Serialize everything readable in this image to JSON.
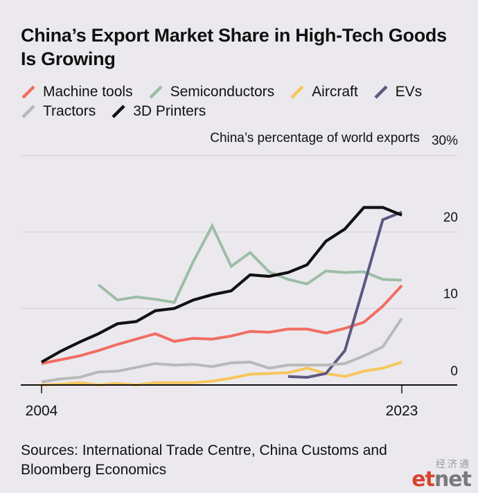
{
  "title": "China’s Export Market Share in High-Tech Goods Is Growing",
  "unit_label": "China’s percentage of world exports",
  "source": "Sources: International Trade Centre, China Customs and Bloomberg Economics",
  "logo": {
    "cn": "经济通",
    "e": "et",
    "t": "net"
  },
  "chart_data": {
    "type": "line",
    "title": "China’s Export Market Share in High-Tech Goods Is Growing",
    "ylabel": "China’s percentage of world exports",
    "ylim": [
      0,
      30
    ],
    "xlim": [
      2004,
      2023
    ],
    "y_ticks": [
      0,
      10,
      20,
      30
    ],
    "y_tick_labels": [
      "0",
      "10",
      "20",
      "30%"
    ],
    "x_tick_labels": [
      "2004",
      "2023"
    ],
    "grid": true,
    "legend": "top",
    "x": [
      2004,
      2005,
      2006,
      2007,
      2008,
      2009,
      2010,
      2011,
      2012,
      2013,
      2014,
      2015,
      2016,
      2017,
      2018,
      2019,
      2020,
      2021,
      2022,
      2023
    ],
    "series": [
      {
        "name": "Machine tools",
        "color": "#f26d62",
        "values": [
          2.8,
          3.3,
          3.8,
          4.5,
          5.3,
          6.0,
          6.7,
          5.7,
          6.1,
          6.0,
          6.4,
          7.0,
          6.9,
          7.3,
          7.3,
          6.8,
          7.4,
          8.2,
          10.3,
          13.0
        ]
      },
      {
        "name": "Semiconductors",
        "color": "#9dbda6",
        "values": [
          null,
          null,
          null,
          13.1,
          11.1,
          11.5,
          11.2,
          10.8,
          16.1,
          20.8,
          15.5,
          17.3,
          14.8,
          13.8,
          13.2,
          14.9,
          14.7,
          14.8,
          13.8,
          13.7
        ]
      },
      {
        "name": "Aircraft",
        "color": "#f7c65c",
        "values": [
          0.0,
          0.1,
          0.3,
          0.0,
          0.2,
          0.0,
          0.3,
          0.3,
          0.3,
          0.5,
          0.9,
          1.4,
          1.5,
          1.6,
          2.2,
          1.5,
          1.1,
          1.8,
          2.2,
          3.0
        ]
      },
      {
        "name": "EVs",
        "color": "#5c5980",
        "values": [
          null,
          null,
          null,
          null,
          null,
          null,
          null,
          null,
          null,
          null,
          null,
          null,
          null,
          1.1,
          1.0,
          1.5,
          4.5,
          13.0,
          21.6,
          22.6
        ]
      },
      {
        "name": "Tractors",
        "color": "#b9b9b9",
        "values": [
          0.4,
          0.8,
          1.0,
          1.7,
          1.8,
          2.3,
          2.8,
          2.6,
          2.7,
          2.4,
          2.9,
          3.0,
          2.2,
          2.6,
          2.6,
          2.6,
          2.8,
          3.8,
          5.0,
          8.7
        ]
      },
      {
        "name": "3D Printers",
        "color": "#111111",
        "values": [
          3.0,
          4.4,
          5.6,
          6.7,
          8.0,
          8.3,
          9.7,
          10.0,
          11.1,
          11.8,
          12.3,
          14.4,
          14.2,
          14.7,
          15.7,
          18.8,
          20.4,
          23.2,
          23.2,
          22.2
        ]
      }
    ]
  }
}
